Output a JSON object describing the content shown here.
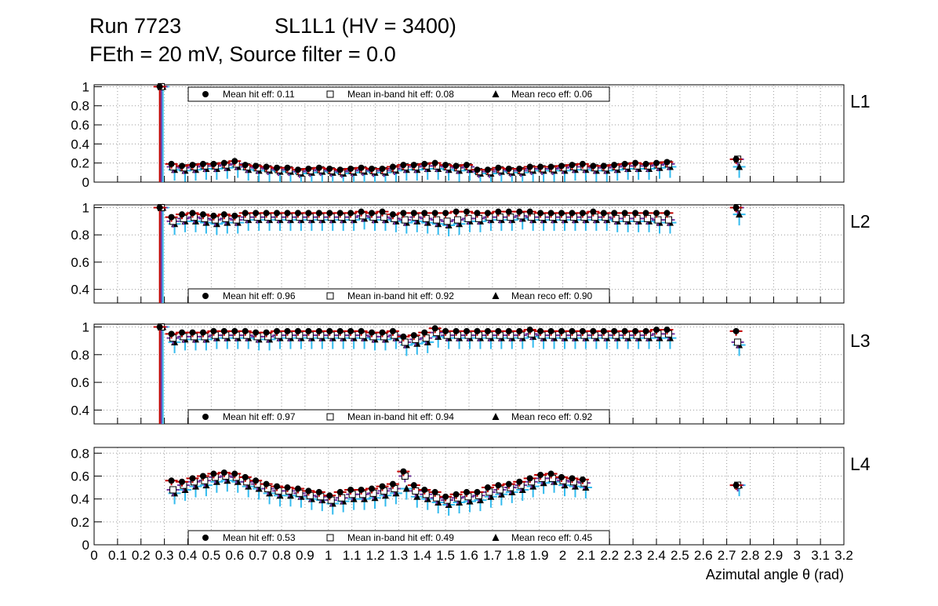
{
  "title": {
    "run": "Run 7723",
    "chamber": "SL1L1 (HV = 3400)",
    "settings": "FEth = 20 mV, Source filter = 0.0"
  },
  "colors": {
    "hit": "#c00000",
    "inband": "#7030a0",
    "reco": "#33bbee",
    "marker": "#000000",
    "grid": "#9a9a9a"
  },
  "chart_data": {
    "type": "scatter",
    "xlabel": "Azimutal angle θ (rad)",
    "xlim": [
      0,
      3.2
    ],
    "x_ticks": [
      "0",
      "0.1",
      "0.2",
      "0.3",
      "0.4",
      "0.5",
      "0.6",
      "0.7",
      "0.8",
      "0.9",
      "1",
      "1.1",
      "1.2",
      "1.3",
      "1.4",
      "1.5",
      "1.6",
      "1.7",
      "1.8",
      "1.9",
      "2",
      "2.1",
      "2.2",
      "2.3",
      "2.4",
      "2.5",
      "2.6",
      "2.7",
      "2.8",
      "2.9",
      "3",
      "3.1",
      "3.2"
    ],
    "x": [
      0.28,
      0.33,
      0.375,
      0.42,
      0.465,
      0.51,
      0.555,
      0.6,
      0.645,
      0.69,
      0.735,
      0.78,
      0.825,
      0.87,
      0.915,
      0.96,
      1.005,
      1.05,
      1.095,
      1.14,
      1.185,
      1.23,
      1.275,
      1.32,
      1.365,
      1.41,
      1.455,
      1.5,
      1.545,
      1.59,
      1.635,
      1.68,
      1.725,
      1.77,
      1.815,
      1.86,
      1.905,
      1.95,
      1.995,
      2.04,
      2.085,
      2.13,
      2.175,
      2.22,
      2.265,
      2.31,
      2.355,
      2.4,
      2.445,
      2.49,
      2.535,
      2.58,
      2.625,
      2.67,
      2.715,
      2.76
    ],
    "panels": [
      {
        "label": "L1",
        "ylim": [
          0,
          1.02
        ],
        "y_ticks": [
          "0",
          "0.2",
          "0.4",
          "0.6",
          "0.8",
          "1"
        ],
        "legend": {
          "hit": "Mean hit  eff: 0.11",
          "inband": "Mean in-band hit eff: 0.08",
          "reco": "Mean reco eff: 0.06"
        },
        "series": [
          {
            "name": "Mean hit  eff: 0.11",
            "values": [
              1.0,
              0.19,
              0.17,
              0.18,
              0.19,
              0.19,
              0.2,
              0.22,
              0.18,
              0.17,
              0.16,
              0.15,
              0.15,
              0.13,
              0.14,
              0.15,
              0.14,
              0.13,
              0.14,
              0.15,
              0.14,
              0.14,
              0.16,
              0.18,
              0.18,
              0.19,
              0.2,
              0.18,
              0.17,
              0.18,
              0.13,
              0.13,
              0.15,
              0.14,
              0.14,
              0.16,
              0.16,
              0.16,
              0.17,
              0.18,
              0.19,
              0.17,
              0.17,
              0.18,
              0.19,
              0.2,
              0.19,
              0.2,
              0.21,
              0.24
            ]
          },
          {
            "name": "Mean in-band hit eff: 0.08",
            "values": [
              1.0,
              0.16,
              0.15,
              0.16,
              0.17,
              0.17,
              0.18,
              0.19,
              0.16,
              0.15,
              0.14,
              0.13,
              0.13,
              0.11,
              0.12,
              0.13,
              0.12,
              0.11,
              0.12,
              0.13,
              0.12,
              0.12,
              0.14,
              0.16,
              0.16,
              0.17,
              0.17,
              0.16,
              0.15,
              0.16,
              0.11,
              0.11,
              0.13,
              0.12,
              0.12,
              0.14,
              0.14,
              0.14,
              0.15,
              0.16,
              0.16,
              0.15,
              0.15,
              0.16,
              0.17,
              0.17,
              0.17,
              0.18,
              0.19,
              0.24
            ]
          },
          {
            "name": "Mean reco eff: 0.06",
            "values": [
              1.0,
              0.13,
              0.12,
              0.13,
              0.14,
              0.14,
              0.15,
              0.16,
              0.13,
              0.12,
              0.12,
              0.11,
              0.11,
              0.09,
              0.1,
              0.11,
              0.1,
              0.09,
              0.1,
              0.11,
              0.1,
              0.1,
              0.12,
              0.13,
              0.13,
              0.14,
              0.14,
              0.13,
              0.12,
              0.13,
              0.09,
              0.09,
              0.11,
              0.1,
              0.1,
              0.12,
              0.12,
              0.12,
              0.12,
              0.13,
              0.13,
              0.12,
              0.12,
              0.13,
              0.14,
              0.14,
              0.14,
              0.15,
              0.16,
              0.16
            ]
          }
        ]
      },
      {
        "label": "L2",
        "ylim": [
          0.3,
          1.02
        ],
        "y_ticks": [
          "0.4",
          "0.6",
          "0.8",
          "1"
        ],
        "legend": {
          "hit": "Mean hit  eff: 0.96",
          "inband": "Mean in-band hit eff: 0.92",
          "reco": "Mean reco eff: 0.90"
        },
        "series": [
          {
            "name": "Mean hit  eff: 0.96",
            "values": [
              1.0,
              0.93,
              0.95,
              0.96,
              0.95,
              0.94,
              0.95,
              0.94,
              0.96,
              0.96,
              0.96,
              0.96,
              0.96,
              0.96,
              0.96,
              0.96,
              0.96,
              0.96,
              0.96,
              0.97,
              0.96,
              0.97,
              0.95,
              0.96,
              0.96,
              0.96,
              0.96,
              0.96,
              0.97,
              0.97,
              0.96,
              0.96,
              0.97,
              0.97,
              0.97,
              0.97,
              0.96,
              0.96,
              0.96,
              0.96,
              0.96,
              0.97,
              0.96,
              0.96,
              0.96,
              0.96,
              0.96,
              0.96,
              0.96,
              1.0
            ]
          },
          {
            "name": "Mean in-band hit eff: 0.92",
            "values": [
              1.0,
              0.9,
              0.92,
              0.93,
              0.92,
              0.91,
              0.92,
              0.91,
              0.93,
              0.93,
              0.93,
              0.93,
              0.93,
              0.93,
              0.93,
              0.93,
              0.93,
              0.93,
              0.93,
              0.94,
              0.93,
              0.93,
              0.92,
              0.91,
              0.93,
              0.92,
              0.91,
              0.9,
              0.91,
              0.92,
              0.92,
              0.93,
              0.93,
              0.93,
              0.94,
              0.93,
              0.93,
              0.93,
              0.93,
              0.93,
              0.93,
              0.93,
              0.93,
              0.92,
              0.92,
              0.92,
              0.92,
              0.91,
              0.91,
              1.0
            ]
          },
          {
            "name": "Mean reco eff: 0.90",
            "values": [
              1.0,
              0.88,
              0.9,
              0.9,
              0.89,
              0.88,
              0.89,
              0.89,
              0.91,
              0.91,
              0.91,
              0.91,
              0.91,
              0.91,
              0.91,
              0.91,
              0.91,
              0.91,
              0.91,
              0.92,
              0.91,
              0.91,
              0.9,
              0.89,
              0.9,
              0.89,
              0.88,
              0.87,
              0.88,
              0.9,
              0.9,
              0.91,
              0.91,
              0.91,
              0.92,
              0.91,
              0.91,
              0.91,
              0.91,
              0.91,
              0.91,
              0.91,
              0.91,
              0.9,
              0.9,
              0.9,
              0.9,
              0.89,
              0.89,
              0.95
            ]
          }
        ]
      },
      {
        "label": "L3",
        "ylim": [
          0.3,
          1.02
        ],
        "y_ticks": [
          "0.4",
          "0.6",
          "0.8",
          "1"
        ],
        "legend": {
          "hit": "Mean hit  eff: 0.97",
          "inband": "Mean in-band hit eff: 0.94",
          "reco": "Mean reco eff: 0.92"
        },
        "series": [
          {
            "name": "Mean hit  eff: 0.97",
            "values": [
              1.0,
              0.95,
              0.96,
              0.96,
              0.96,
              0.97,
              0.97,
              0.97,
              0.97,
              0.96,
              0.96,
              0.97,
              0.97,
              0.97,
              0.97,
              0.97,
              0.97,
              0.97,
              0.97,
              0.97,
              0.96,
              0.96,
              0.97,
              0.93,
              0.94,
              0.96,
              0.99,
              0.97,
              0.97,
              0.97,
              0.97,
              0.97,
              0.97,
              0.97,
              0.97,
              0.98,
              0.97,
              0.97,
              0.97,
              0.97,
              0.97,
              0.97,
              0.97,
              0.97,
              0.97,
              0.97,
              0.97,
              0.98,
              0.98,
              0.97
            ]
          },
          {
            "name": "Mean in-band hit eff: 0.94",
            "values": [
              1.0,
              0.92,
              0.93,
              0.93,
              0.93,
              0.94,
              0.94,
              0.94,
              0.94,
              0.93,
              0.93,
              0.94,
              0.94,
              0.94,
              0.94,
              0.94,
              0.94,
              0.94,
              0.94,
              0.94,
              0.93,
              0.93,
              0.94,
              0.89,
              0.91,
              0.92,
              0.96,
              0.94,
              0.94,
              0.94,
              0.94,
              0.94,
              0.94,
              0.94,
              0.94,
              0.95,
              0.94,
              0.94,
              0.94,
              0.94,
              0.94,
              0.94,
              0.94,
              0.94,
              0.94,
              0.94,
              0.94,
              0.95,
              0.95,
              0.89
            ]
          },
          {
            "name": "Mean reco eff: 0.92",
            "values": [
              1.0,
              0.89,
              0.91,
              0.91,
              0.91,
              0.92,
              0.92,
              0.92,
              0.92,
              0.91,
              0.91,
              0.92,
              0.92,
              0.92,
              0.92,
              0.92,
              0.92,
              0.92,
              0.92,
              0.92,
              0.91,
              0.91,
              0.92,
              0.87,
              0.88,
              0.89,
              0.93,
              0.92,
              0.92,
              0.92,
              0.92,
              0.92,
              0.92,
              0.92,
              0.92,
              0.93,
              0.92,
              0.92,
              0.92,
              0.92,
              0.92,
              0.92,
              0.92,
              0.92,
              0.92,
              0.92,
              0.92,
              0.92,
              0.92,
              0.87
            ]
          }
        ]
      },
      {
        "label": "L4",
        "ylim": [
          0,
          0.85
        ],
        "y_ticks": [
          "0",
          "0.2",
          "0.4",
          "0.6",
          "0.8"
        ],
        "legend": {
          "hit": "Mean hit  eff: 0.53",
          "inband": "Mean in-band hit eff: 0.49",
          "reco": "Mean reco eff: 0.45"
        },
        "series": [
          {
            "name": "Mean hit  eff: 0.53",
            "values": [
              0.56,
              0.55,
              0.58,
              0.6,
              0.62,
              0.63,
              0.62,
              0.59,
              0.56,
              0.53,
              0.51,
              0.5,
              0.49,
              0.47,
              0.46,
              0.43,
              0.46,
              0.48,
              0.48,
              0.49,
              0.51,
              0.53,
              0.64,
              0.52,
              0.48,
              0.46,
              0.42,
              0.44,
              0.46,
              0.46,
              0.5,
              0.52,
              0.53,
              0.55,
              0.58,
              0.61,
              0.62,
              0.59,
              0.58,
              0.57,
              0.52
            ]
          },
          {
            "name": "Mean in-band hit eff: 0.49",
            "values": [
              0.48,
              0.52,
              0.55,
              0.56,
              0.59,
              0.6,
              0.59,
              0.55,
              0.53,
              0.49,
              0.47,
              0.47,
              0.45,
              0.43,
              0.42,
              0.39,
              0.41,
              0.44,
              0.44,
              0.45,
              0.47,
              0.49,
              0.6,
              0.47,
              0.44,
              0.41,
              0.39,
              0.41,
              0.42,
              0.43,
              0.46,
              0.48,
              0.5,
              0.52,
              0.55,
              0.58,
              0.58,
              0.56,
              0.55,
              0.54,
              0.52
            ]
          },
          {
            "name": "Mean reco eff: 0.45",
            "values": [
              0.45,
              0.48,
              0.51,
              0.52,
              0.55,
              0.56,
              0.55,
              0.51,
              0.49,
              0.45,
              0.43,
              0.43,
              0.42,
              0.4,
              0.39,
              0.36,
              0.38,
              0.4,
              0.4,
              0.41,
              0.43,
              0.45,
              0.49,
              0.42,
              0.4,
              0.37,
              0.35,
              0.37,
              0.38,
              0.39,
              0.42,
              0.44,
              0.46,
              0.48,
              0.51,
              0.54,
              0.55,
              0.52,
              0.51,
              0.5,
              0.52
            ]
          }
        ]
      }
    ]
  }
}
